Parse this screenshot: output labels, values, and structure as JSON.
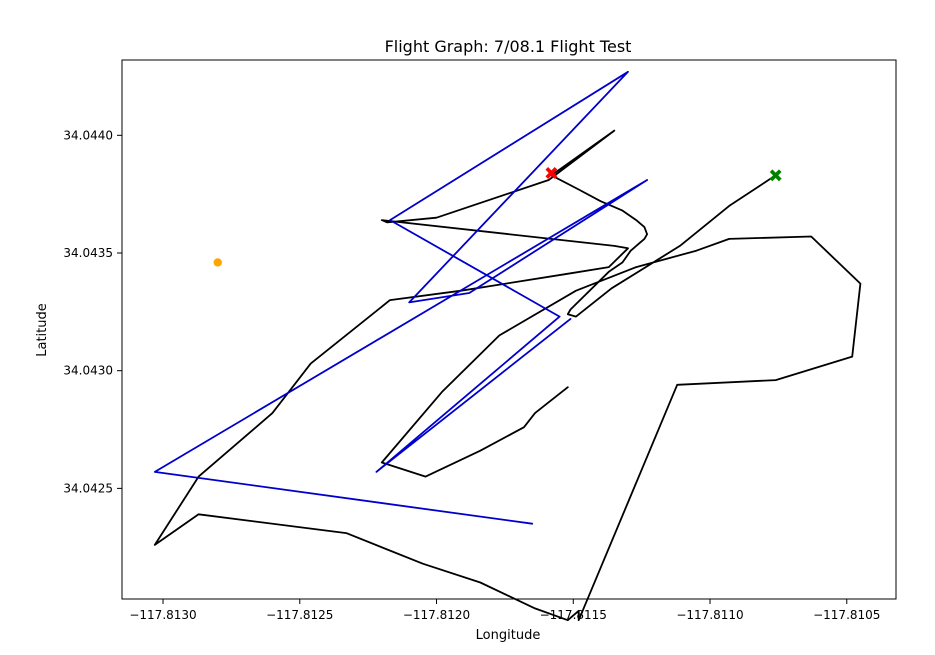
{
  "chart_data": {
    "type": "line",
    "title": "Flight Graph: 7/08.1 Flight Test",
    "xlabel": "Longitude",
    "ylabel": "Latitude",
    "xlim": [
      -117.81315,
      -117.81032
    ],
    "ylim": [
      34.04203,
      34.04432
    ],
    "x_ticks": [
      -117.813,
      -117.8125,
      -117.812,
      -117.8115,
      -117.811,
      -117.8105
    ],
    "x_tick_labels": [
      "−117.8130",
      "−117.8125",
      "−117.8120",
      "−117.8115",
      "−117.8110",
      "−117.8105"
    ],
    "y_ticks": [
      34.0425,
      34.043,
      34.0435,
      34.044
    ],
    "y_tick_labels": [
      "34.0425",
      "34.0430",
      "34.0435",
      "34.0440"
    ],
    "grid": false,
    "series": [
      {
        "color": "#000000",
        "kind": "line",
        "x": [
          -117.81076,
          -117.81093,
          -117.81111,
          -117.81136,
          -117.81149,
          -117.81152,
          -117.81151,
          -117.81137,
          -117.81132,
          -117.81129,
          -117.81124,
          -117.81123,
          -117.81124,
          -117.81127,
          -117.81132,
          -117.8114,
          -117.81148,
          -117.81158,
          -117.81135,
          -117.81159,
          -117.812,
          -117.81218,
          -117.8122,
          -117.81135,
          -117.8113,
          -117.81137,
          -117.81153,
          -117.81191,
          -117.81217,
          -117.81246,
          -117.8126,
          -117.81287,
          -117.81303,
          -117.81287,
          -117.81233,
          -117.81205,
          -117.81184,
          -117.81164,
          -117.81152,
          -117.81148,
          -117.81148,
          -117.81112,
          -117.81076,
          -117.81048,
          -117.81045,
          -117.81063,
          -117.81093,
          -117.81105,
          -117.81127,
          -117.81149,
          -117.81177,
          -117.81198,
          -117.8122,
          -117.81204,
          -117.81184,
          -117.81168,
          -117.81164,
          -117.81152
        ],
        "y": [
          34.04383,
          34.0437,
          34.04353,
          34.04335,
          34.04323,
          34.04324,
          34.04326,
          34.04342,
          34.04346,
          34.04351,
          34.04356,
          34.04358,
          34.04361,
          34.04364,
          34.04368,
          34.04372,
          34.04377,
          34.04383,
          34.04402,
          34.04381,
          34.04365,
          34.04363,
          34.04364,
          34.04353,
          34.04352,
          34.04344,
          34.04341,
          34.04334,
          34.0433,
          34.04303,
          34.04282,
          34.04255,
          34.04226,
          34.04239,
          34.04231,
          34.04218,
          34.0421,
          34.04199,
          34.04194,
          34.04198,
          34.04194,
          34.04294,
          34.04296,
          34.04306,
          34.04337,
          34.04357,
          34.04356,
          34.04351,
          34.04344,
          34.04334,
          34.04315,
          34.04291,
          34.04261,
          34.04255,
          34.04266,
          34.04276,
          34.04282,
          34.04293
        ]
      },
      {
        "color": "#0000cc",
        "kind": "line",
        "x": [
          -117.81151,
          -117.81222,
          -117.81155,
          -117.81217,
          -117.8113,
          -117.8121,
          -117.81188,
          -117.81123,
          -117.81303,
          -117.81165
        ],
        "y": [
          34.04322,
          34.04257,
          34.04323,
          34.04364,
          34.04427,
          34.04329,
          34.04333,
          34.04381,
          34.04257,
          34.04235
        ]
      },
      {
        "color": "#ff0000",
        "kind": "marker",
        "marker": "X",
        "x": [
          -117.81158
        ],
        "y": [
          34.04384
        ]
      },
      {
        "color": "#008000",
        "kind": "marker",
        "marker": "X",
        "x": [
          -117.81076
        ],
        "y": [
          34.04383
        ]
      },
      {
        "color": "#ffa500",
        "kind": "marker",
        "marker": "o",
        "x": [
          -117.8128
        ],
        "y": [
          34.04346
        ]
      }
    ]
  }
}
